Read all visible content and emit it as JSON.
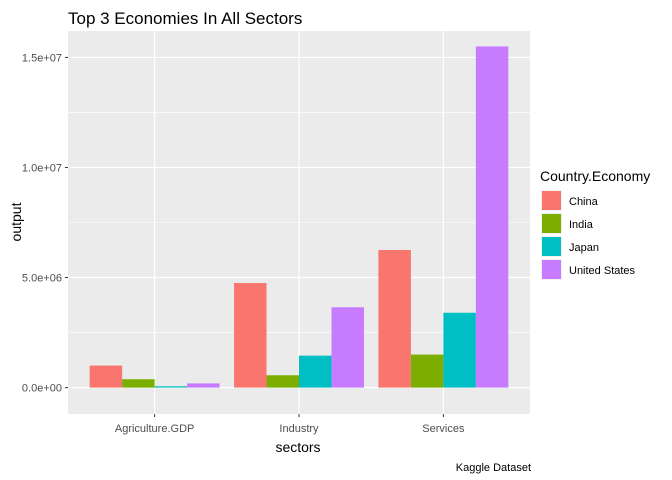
{
  "chart_data": {
    "type": "bar",
    "title": "Top 3 Economies In All Sectors",
    "xlabel": "sectors",
    "ylabel": "output",
    "caption": "Kaggle Dataset",
    "categories": [
      "Agriculture.GDP",
      "Industry",
      "Services"
    ],
    "series": [
      {
        "name": "China",
        "color": "#F8766D",
        "values": [
          1000000,
          4750000,
          6250000
        ]
      },
      {
        "name": "India",
        "color": "#7CAE00",
        "values": [
          380000,
          560000,
          1500000
        ]
      },
      {
        "name": "Japan",
        "color": "#00BFC4",
        "values": [
          60000,
          1450000,
          3400000
        ]
      },
      {
        "name": "United States",
        "color": "#C77CFF",
        "values": [
          190000,
          3650000,
          15500000
        ]
      }
    ],
    "ylim": [
      -1200000,
      16200000
    ],
    "yticks": [
      0,
      5000000,
      10000000,
      15000000
    ],
    "ytick_labels": [
      "0.0e+00",
      "5.0e+06",
      "1.0e+07",
      "1.5e+07"
    ],
    "legend_title": "Country.Economy",
    "legend_position": "right",
    "grid": true,
    "panel_background": "#EBEBEB",
    "grid_color": "#FFFFFF"
  }
}
